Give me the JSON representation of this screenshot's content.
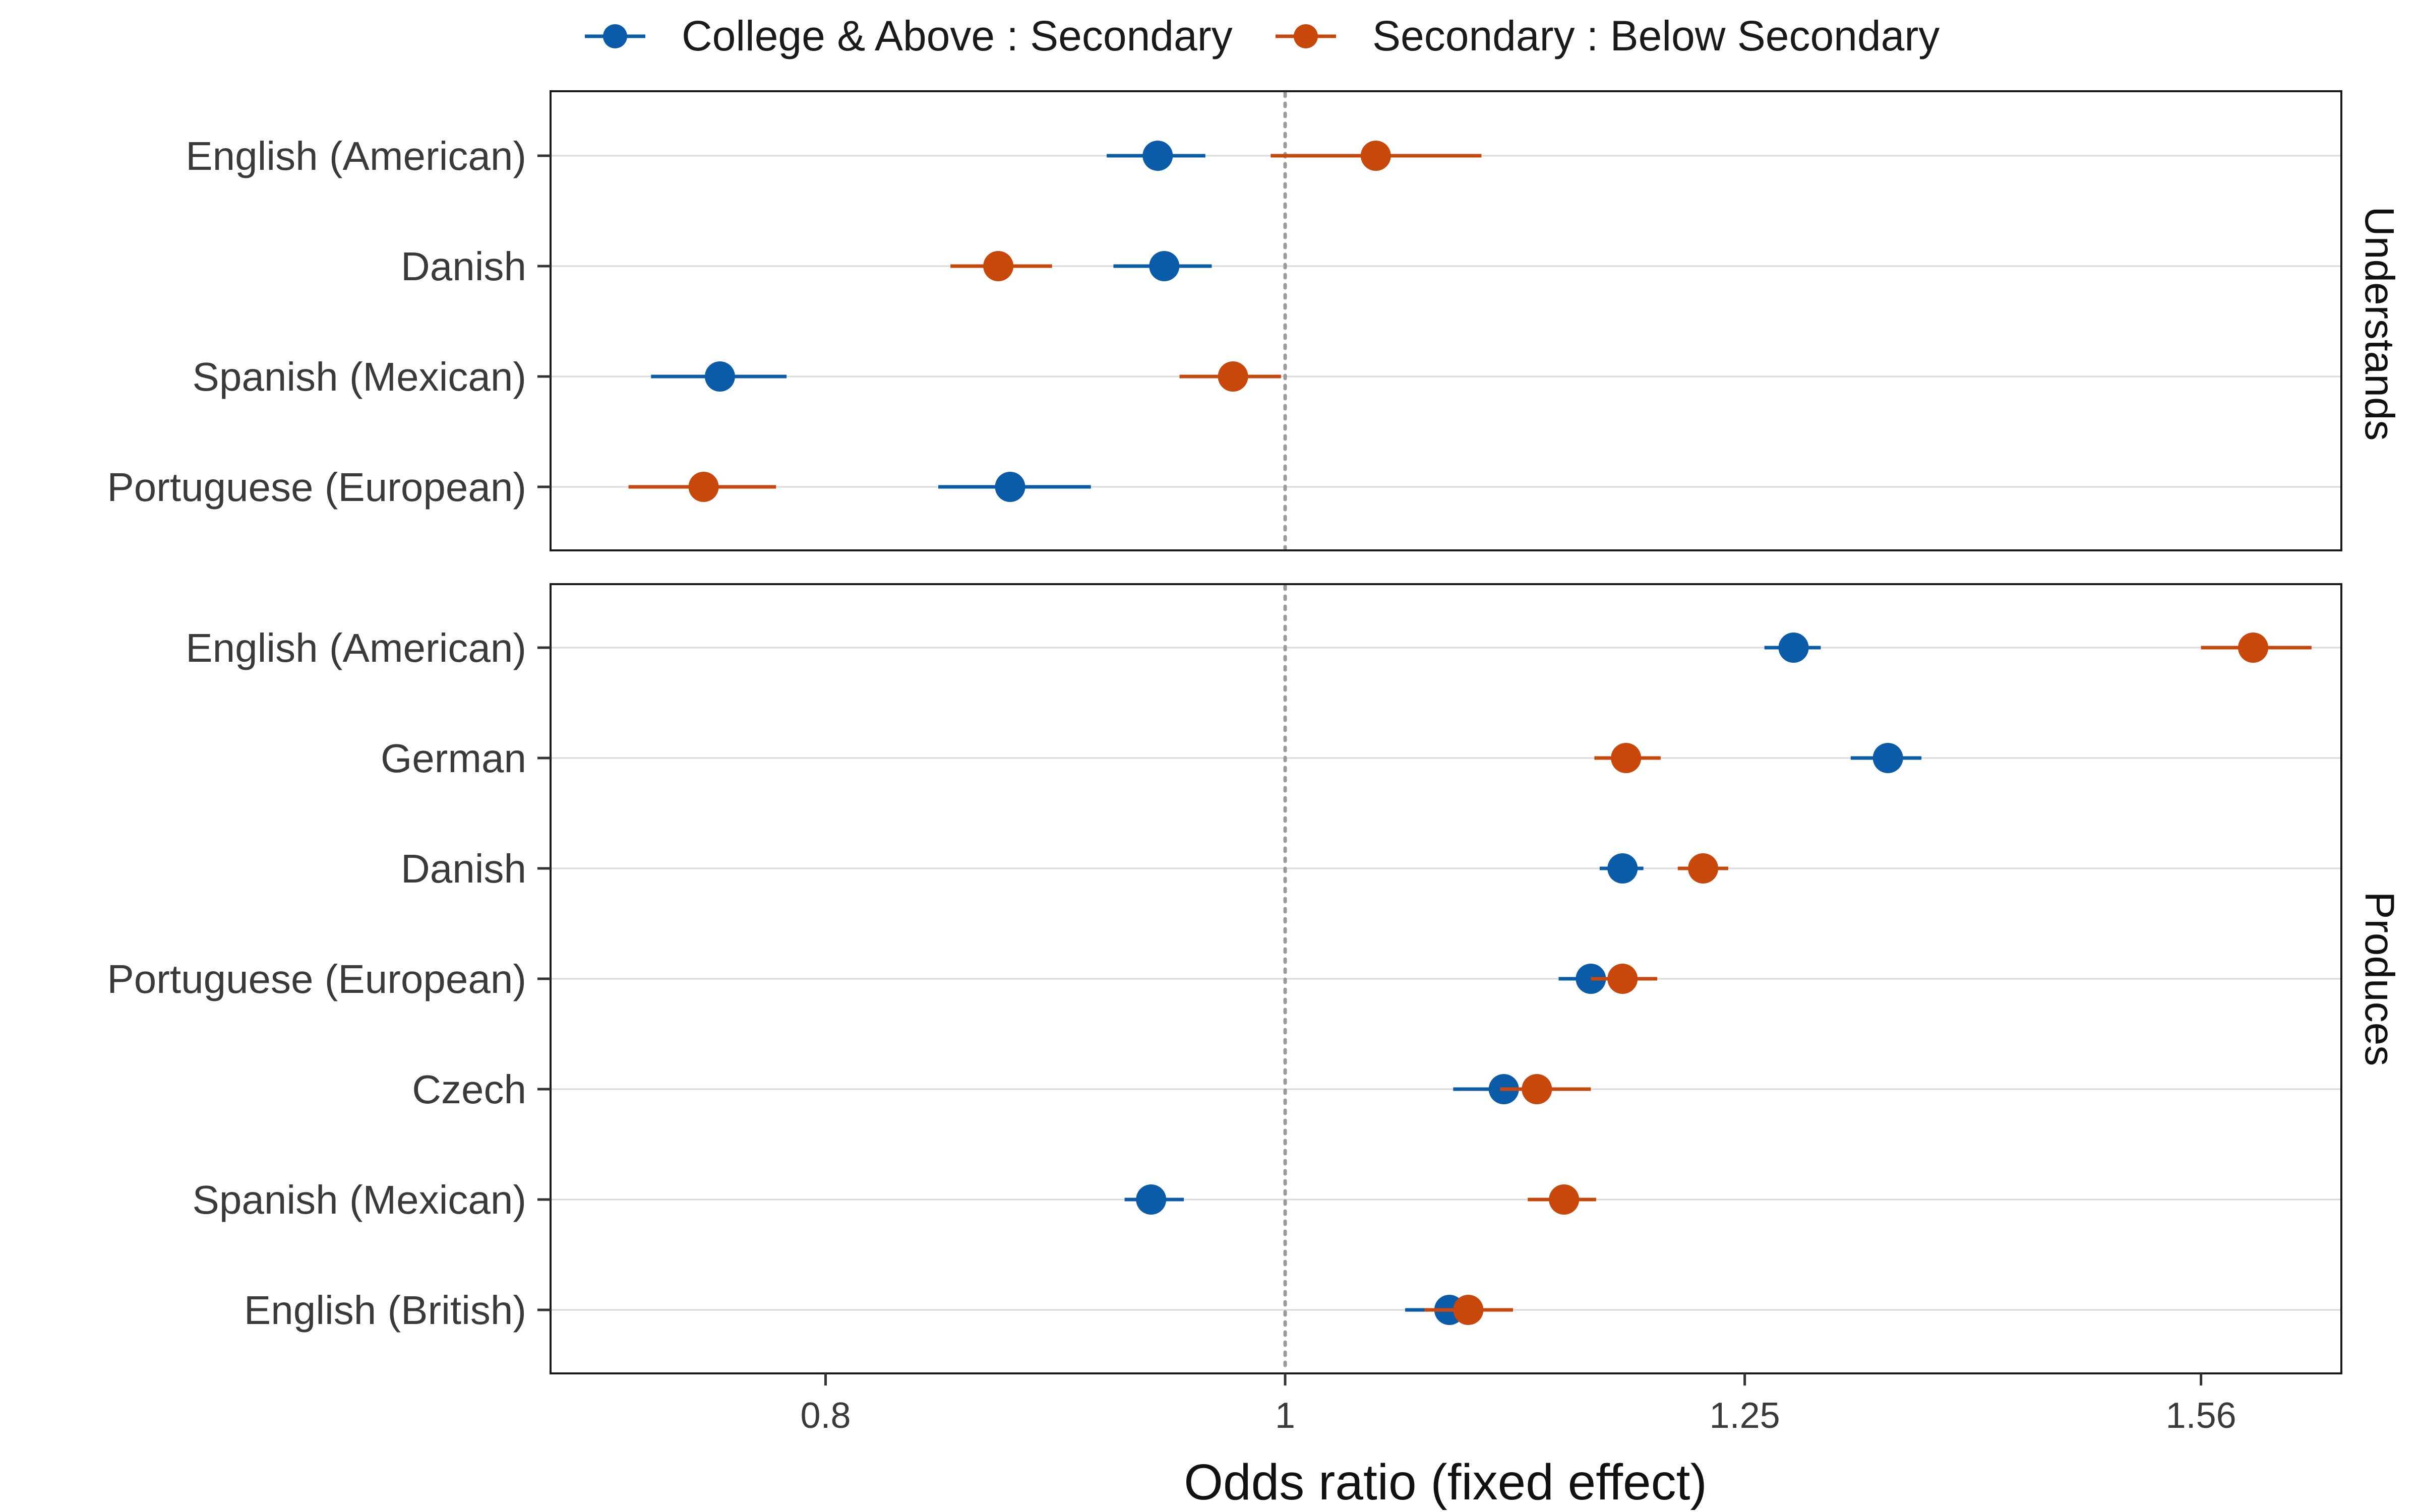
{
  "chart_data": {
    "type": "scatter",
    "subtype": "dot-and-whisker",
    "xlabel": "Odds ratio (fixed effect)",
    "x_scale": "log",
    "xlim": [
      0.7,
      1.67
    ],
    "x_ticks": [
      0.8,
      1,
      1.25,
      1.56
    ],
    "x_tick_labels": [
      "0.8",
      "1",
      "1.25",
      "1.56"
    ],
    "reference_line": 1,
    "grid": "horizontal",
    "legend_position": "top",
    "series": [
      {
        "name": "College & Above : Secondary",
        "color": "#0a5ca8"
      },
      {
        "name": "Secondary : Below Secondary",
        "color": "#c8470a"
      }
    ],
    "panels": [
      {
        "strip_label": "Understands",
        "rows": [
          {
            "label": "English (American)",
            "values": [
              {
                "est": 0.94,
                "lo": 0.917,
                "hi": 0.962
              },
              {
                "est": 1.045,
                "lo": 0.993,
                "hi": 1.1
              }
            ]
          },
          {
            "label": "Danish",
            "values": [
              {
                "est": 0.943,
                "lo": 0.92,
                "hi": 0.965
              },
              {
                "est": 0.87,
                "lo": 0.85,
                "hi": 0.893
              }
            ]
          },
          {
            "label": "Spanish (Mexican)",
            "values": [
              {
                "est": 0.76,
                "lo": 0.735,
                "hi": 0.785
              },
              {
                "est": 0.975,
                "lo": 0.95,
                "hi": 0.998
              }
            ]
          },
          {
            "label": "Portuguese (European)",
            "values": [
              {
                "est": 0.875,
                "lo": 0.845,
                "hi": 0.91
              },
              {
                "est": 0.754,
                "lo": 0.727,
                "hi": 0.781
              }
            ]
          }
        ]
      },
      {
        "strip_label": "Produces",
        "rows": [
          {
            "label": "English (American)",
            "values": [
              {
                "est": 1.28,
                "lo": 1.262,
                "hi": 1.297
              },
              {
                "est": 1.6,
                "lo": 1.56,
                "hi": 1.646
              }
            ]
          },
          {
            "label": "German",
            "values": [
              {
                "est": 1.34,
                "lo": 1.316,
                "hi": 1.362
              },
              {
                "est": 1.18,
                "lo": 1.162,
                "hi": 1.2
              }
            ]
          },
          {
            "label": "Danish",
            "values": [
              {
                "est": 1.178,
                "lo": 1.165,
                "hi": 1.19
              },
              {
                "est": 1.225,
                "lo": 1.21,
                "hi": 1.24
              }
            ]
          },
          {
            "label": "Portuguese (European)",
            "values": [
              {
                "est": 1.16,
                "lo": 1.142,
                "hi": 1.175
              },
              {
                "est": 1.178,
                "lo": 1.16,
                "hi": 1.198
              }
            ]
          },
          {
            "label": "Czech",
            "values": [
              {
                "est": 1.112,
                "lo": 1.085,
                "hi": 1.135
              },
              {
                "est": 1.13,
                "lo": 1.11,
                "hi": 1.16
              }
            ]
          },
          {
            "label": "Spanish (Mexican)",
            "values": [
              {
                "est": 0.937,
                "lo": 0.925,
                "hi": 0.952
              },
              {
                "est": 1.145,
                "lo": 1.125,
                "hi": 1.163
              }
            ]
          },
          {
            "label": "English (British)",
            "values": [
              {
                "est": 1.083,
                "lo": 1.06,
                "hi": 1.095
              },
              {
                "est": 1.093,
                "lo": 1.07,
                "hi": 1.117
              }
            ]
          }
        ]
      }
    ]
  }
}
